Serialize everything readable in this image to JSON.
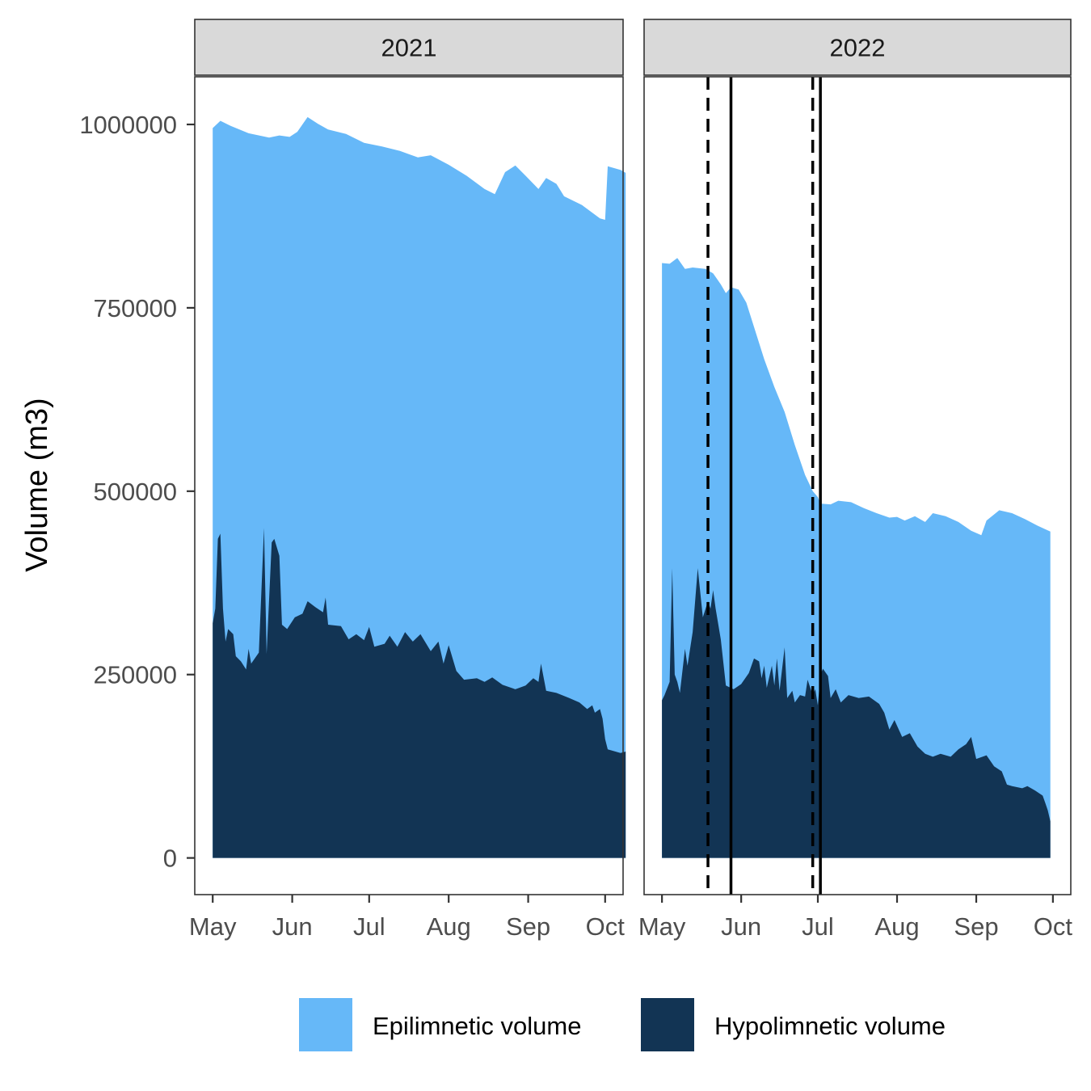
{
  "chart_data": {
    "type": "area",
    "ylabel": "Volume (m3)",
    "xlabel": "",
    "ylim": [
      -50000,
      1065000
    ],
    "y_ticks": [
      0,
      250000,
      500000,
      750000,
      1000000
    ],
    "y_tick_labels": [
      "0",
      "250000",
      "500000",
      "750000",
      "1000000"
    ],
    "x_ticks": [
      "05-01",
      "06-01",
      "07-01",
      "08-01",
      "09-01",
      "10-01"
    ],
    "x_tick_labels": [
      "May",
      "Jun",
      "Jul",
      "Aug",
      "Sep",
      "Oct"
    ],
    "x_range": [
      "04-24",
      "10-08"
    ],
    "legend": {
      "placement": "bottom",
      "items": [
        {
          "name": "Epilimnetic volume",
          "color": "#66B8F8"
        },
        {
          "name": "Hypolimnetic volume",
          "color": "#123454"
        }
      ]
    },
    "grid": false,
    "panels": [
      {
        "label": "2021",
        "epilimnetic": [
          [
            "05-01",
            995000
          ],
          [
            "05-04",
            1005000
          ],
          [
            "05-08",
            998000
          ],
          [
            "05-15",
            988000
          ],
          [
            "05-23",
            982000
          ],
          [
            "05-27",
            985000
          ],
          [
            "05-31",
            983000
          ],
          [
            "06-03",
            990000
          ],
          [
            "06-07",
            1010000
          ],
          [
            "06-11",
            1001000
          ],
          [
            "06-15",
            993000
          ],
          [
            "06-22",
            987000
          ],
          [
            "06-29",
            975000
          ],
          [
            "07-06",
            970000
          ],
          [
            "07-13",
            964000
          ],
          [
            "07-20",
            955000
          ],
          [
            "07-25",
            958000
          ],
          [
            "08-01",
            945000
          ],
          [
            "08-08",
            930000
          ],
          [
            "08-15",
            912000
          ],
          [
            "08-19",
            905000
          ],
          [
            "08-23",
            935000
          ],
          [
            "08-27",
            944000
          ],
          [
            "08-31",
            930000
          ],
          [
            "09-05",
            912000
          ],
          [
            "09-08",
            927000
          ],
          [
            "09-12",
            919000
          ],
          [
            "09-15",
            902000
          ],
          [
            "09-22",
            890000
          ],
          [
            "09-29",
            872000
          ],
          [
            "10-01",
            870000
          ],
          [
            "10-02",
            943000
          ],
          [
            "10-07",
            938000
          ],
          [
            "10-09",
            934000
          ]
        ],
        "hypolimnetic": [
          [
            "05-01",
            320000
          ],
          [
            "05-02",
            340000
          ],
          [
            "05-03",
            435000
          ],
          [
            "05-04",
            442000
          ],
          [
            "05-05",
            340000
          ],
          [
            "05-06",
            295000
          ],
          [
            "05-07",
            312000
          ],
          [
            "05-09",
            305000
          ],
          [
            "05-10",
            275000
          ],
          [
            "05-12",
            268000
          ],
          [
            "05-14",
            257000
          ],
          [
            "05-15",
            285000
          ],
          [
            "05-16",
            265000
          ],
          [
            "05-19",
            280000
          ],
          [
            "05-21",
            450000
          ],
          [
            "05-22",
            278000
          ],
          [
            "05-24",
            430000
          ],
          [
            "05-25",
            435000
          ],
          [
            "05-27",
            412000
          ],
          [
            "05-28",
            318000
          ],
          [
            "05-30",
            312000
          ],
          [
            "06-02",
            328000
          ],
          [
            "06-05",
            333000
          ],
          [
            "06-07",
            350000
          ],
          [
            "06-10",
            342000
          ],
          [
            "06-13",
            335000
          ],
          [
            "06-14",
            355000
          ],
          [
            "06-15",
            318000
          ],
          [
            "06-20",
            316000
          ],
          [
            "06-23",
            298000
          ],
          [
            "06-26",
            305000
          ],
          [
            "06-29",
            297000
          ],
          [
            "07-01",
            315000
          ],
          [
            "07-03",
            288000
          ],
          [
            "07-07",
            292000
          ],
          [
            "07-09",
            303000
          ],
          [
            "07-12",
            288000
          ],
          [
            "07-15",
            308000
          ],
          [
            "07-18",
            295000
          ],
          [
            "07-21",
            305000
          ],
          [
            "07-25",
            282000
          ],
          [
            "07-28",
            295000
          ],
          [
            "07-30",
            265000
          ],
          [
            "08-01",
            290000
          ],
          [
            "08-04",
            255000
          ],
          [
            "08-07",
            243000
          ],
          [
            "08-12",
            245000
          ],
          [
            "08-15",
            240000
          ],
          [
            "08-18",
            246000
          ],
          [
            "08-22",
            236000
          ],
          [
            "08-27",
            230000
          ],
          [
            "08-31",
            235000
          ],
          [
            "09-03",
            245000
          ],
          [
            "09-05",
            240000
          ],
          [
            "09-06",
            265000
          ],
          [
            "09-08",
            228000
          ],
          [
            "09-12",
            225000
          ],
          [
            "09-17",
            218000
          ],
          [
            "09-21",
            212000
          ],
          [
            "09-24",
            203000
          ],
          [
            "09-26",
            208000
          ],
          [
            "09-27",
            198000
          ],
          [
            "09-29",
            203000
          ],
          [
            "09-30",
            190000
          ],
          [
            "10-01",
            162000
          ],
          [
            "10-02",
            148000
          ],
          [
            "10-07",
            143000
          ],
          [
            "10-09",
            145000
          ]
        ]
      },
      {
        "label": "2022",
        "epilimnetic": [
          [
            "05-01",
            811000
          ],
          [
            "05-04",
            810000
          ],
          [
            "05-07",
            818000
          ],
          [
            "05-10",
            803000
          ],
          [
            "05-13",
            805000
          ],
          [
            "05-18",
            803000
          ],
          [
            "05-21",
            797000
          ],
          [
            "05-24",
            782000
          ],
          [
            "05-26",
            770000
          ],
          [
            "05-28",
            778000
          ],
          [
            "05-31",
            775000
          ],
          [
            "06-03",
            757000
          ],
          [
            "06-06",
            724000
          ],
          [
            "06-10",
            680000
          ],
          [
            "06-14",
            642000
          ],
          [
            "06-18",
            608000
          ],
          [
            "06-22",
            563000
          ],
          [
            "06-26",
            522000
          ],
          [
            "06-29",
            500000
          ],
          [
            "07-01",
            492000
          ],
          [
            "07-02",
            483000
          ],
          [
            "07-06",
            482000
          ],
          [
            "07-09",
            487000
          ],
          [
            "07-14",
            485000
          ],
          [
            "07-19",
            477000
          ],
          [
            "07-24",
            470000
          ],
          [
            "07-29",
            464000
          ],
          [
            "08-01",
            465000
          ],
          [
            "08-04",
            460000
          ],
          [
            "08-08",
            466000
          ],
          [
            "08-12",
            458000
          ],
          [
            "08-15",
            470000
          ],
          [
            "08-20",
            466000
          ],
          [
            "08-25",
            458000
          ],
          [
            "08-30",
            446000
          ],
          [
            "09-03",
            440000
          ],
          [
            "09-05",
            460000
          ],
          [
            "09-10",
            474000
          ],
          [
            "09-15",
            470000
          ],
          [
            "09-20",
            462000
          ],
          [
            "09-25",
            453000
          ],
          [
            "09-30",
            445000
          ]
        ],
        "hypolimnetic": [
          [
            "05-01",
            215000
          ],
          [
            "05-02",
            222000
          ],
          [
            "05-04",
            240000
          ],
          [
            "05-05",
            395000
          ],
          [
            "05-06",
            250000
          ],
          [
            "05-07",
            240000
          ],
          [
            "05-08",
            225000
          ],
          [
            "05-10",
            285000
          ],
          [
            "05-11",
            262000
          ],
          [
            "05-13",
            308000
          ],
          [
            "05-15",
            395000
          ],
          [
            "05-17",
            328000
          ],
          [
            "05-19",
            350000
          ],
          [
            "05-20",
            340000
          ],
          [
            "05-21",
            365000
          ],
          [
            "05-22",
            340000
          ],
          [
            "05-24",
            298000
          ],
          [
            "05-26",
            235000
          ],
          [
            "05-29",
            230000
          ],
          [
            "06-01",
            237000
          ],
          [
            "06-04",
            252000
          ],
          [
            "06-06",
            272000
          ],
          [
            "06-08",
            268000
          ],
          [
            "06-09",
            245000
          ],
          [
            "06-10",
            262000
          ],
          [
            "06-11",
            232000
          ],
          [
            "06-13",
            262000
          ],
          [
            "06-14",
            235000
          ],
          [
            "06-15",
            272000
          ],
          [
            "06-16",
            228000
          ],
          [
            "06-18",
            287000
          ],
          [
            "06-19",
            218000
          ],
          [
            "06-21",
            228000
          ],
          [
            "06-22",
            212000
          ],
          [
            "06-24",
            222000
          ],
          [
            "06-26",
            220000
          ],
          [
            "06-27",
            243000
          ],
          [
            "06-29",
            222000
          ],
          [
            "06-30",
            230000
          ],
          [
            "07-01",
            208000
          ],
          [
            "07-02",
            250000
          ],
          [
            "07-03",
            258000
          ],
          [
            "07-05",
            248000
          ],
          [
            "07-06",
            218000
          ],
          [
            "07-08",
            230000
          ],
          [
            "07-10",
            212000
          ],
          [
            "07-13",
            222000
          ],
          [
            "07-17",
            218000
          ],
          [
            "07-21",
            220000
          ],
          [
            "07-25",
            210000
          ],
          [
            "07-27",
            198000
          ],
          [
            "07-29",
            175000
          ],
          [
            "07-31",
            188000
          ],
          [
            "08-03",
            165000
          ],
          [
            "08-06",
            170000
          ],
          [
            "08-09",
            152000
          ],
          [
            "08-12",
            142000
          ],
          [
            "08-15",
            138000
          ],
          [
            "08-18",
            142000
          ],
          [
            "08-22",
            138000
          ],
          [
            "08-25",
            148000
          ],
          [
            "08-28",
            155000
          ],
          [
            "08-30",
            165000
          ],
          [
            "09-01",
            135000
          ],
          [
            "09-05",
            140000
          ],
          [
            "09-08",
            125000
          ],
          [
            "09-11",
            118000
          ],
          [
            "09-13",
            100000
          ],
          [
            "09-15",
            98000
          ],
          [
            "09-19",
            95000
          ],
          [
            "09-21",
            98000
          ],
          [
            "09-24",
            92000
          ],
          [
            "09-27",
            85000
          ],
          [
            "09-28",
            75000
          ],
          [
            "09-29",
            65000
          ],
          [
            "09-30",
            50000
          ]
        ],
        "vlines": [
          {
            "date": "05-19",
            "style": "dashed"
          },
          {
            "date": "05-28",
            "style": "solid"
          },
          {
            "date": "06-29",
            "style": "dashed"
          },
          {
            "date": "07-02",
            "style": "solid"
          }
        ]
      }
    ]
  }
}
